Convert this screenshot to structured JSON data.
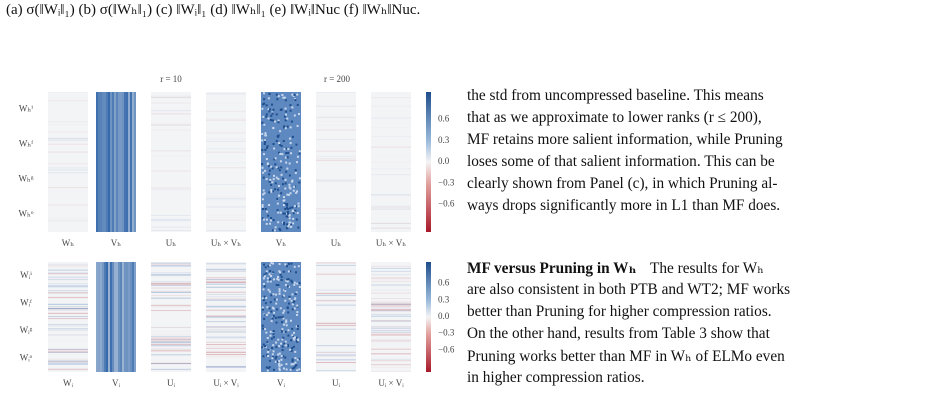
{
  "caption": "(a) σ(‖Wᵢ‖₁) (b) σ(‖Wₕ‖₁) (c) ‖Wᵢ‖₁ (d) ‖Wₕ‖₁ (e) ‖Wᵢ‖Nuc (f) ‖Wₕ‖Nuc.",
  "figure": {
    "rank_labels": [
      "r = 10",
      "r = 200"
    ],
    "rows": [
      {
        "row_labels": [
          "Wₕⁱ",
          "Wₕᶠ",
          "Wₕᵍ",
          "Wₕᵒ"
        ],
        "column_labels": [
          "Wₕ",
          "Vₕ",
          "Uₕ",
          "Uₕ × Vₕ",
          "Vₕ",
          "Uₕ",
          "Uₕ × Vₕ"
        ]
      },
      {
        "row_labels": [
          "Wᵢⁱ",
          "Wᵢᶠ",
          "Wᵢᵍ",
          "Wᵢᵒ"
        ],
        "column_labels": [
          "Wᵢ",
          "Vᵢ",
          "Uᵢ",
          "Uᵢ × Vᵢ",
          "Vᵢ",
          "Uᵢ",
          "Uᵢ × Vᵢ"
        ]
      }
    ],
    "colorbar_ticks": [
      "0.6",
      "0.3",
      "0.0",
      "−0.3",
      "−0.6"
    ]
  },
  "text": {
    "paragraph1": [
      "the std from uncompressed baseline.  This means",
      "that as we approximate to lower ranks (r ≤ 200),",
      "MF retains more salient information, while Pruning",
      "loses some of that salient information. This can be",
      "clearly shown from Panel (c), in which Pruning al-",
      "ways drops significantly more in L1 than MF does."
    ],
    "heading": "MF versus Pruning in Wₕ",
    "paragraph2": [
      "The results for Wₕ",
      "are also consistent in both PTB and WT2; MF works",
      "better than Pruning for higher compression ratios.",
      "On the other hand, results from Table 3 show that",
      "Pruning works better than MF in Wₕ of ELMo even",
      "in higher compression ratios."
    ]
  }
}
